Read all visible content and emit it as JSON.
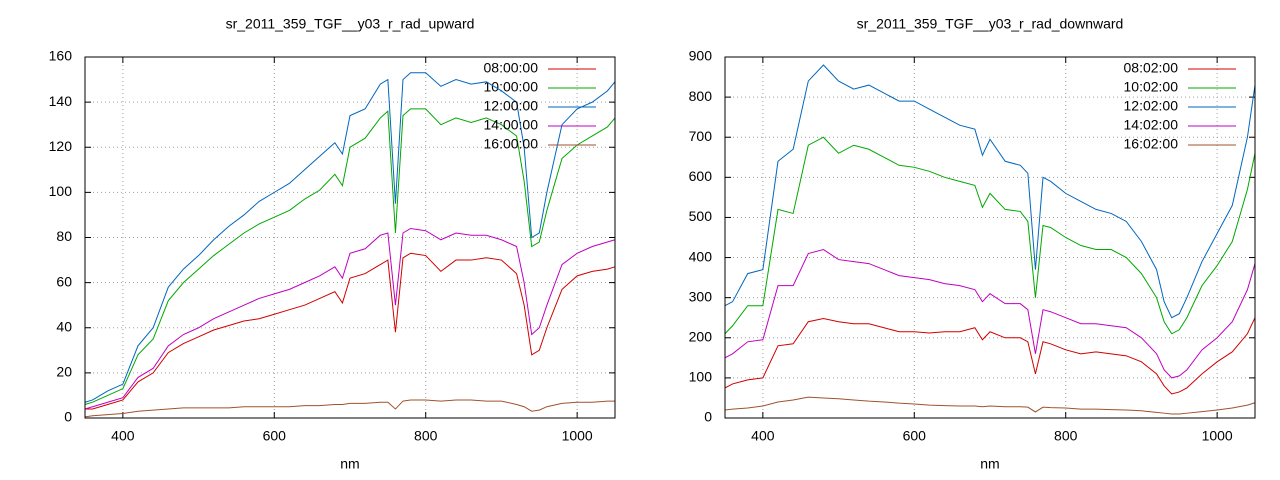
{
  "chart_data": [
    {
      "type": "line",
      "title": "sr_2011_359_TGF__y03_r_rad_upward",
      "x_label": "nm",
      "x": [
        350,
        360,
        380,
        400,
        420,
        440,
        460,
        480,
        500,
        520,
        540,
        560,
        580,
        600,
        620,
        640,
        660,
        680,
        690,
        700,
        720,
        740,
        750,
        760,
        770,
        780,
        800,
        820,
        840,
        860,
        880,
        900,
        920,
        930,
        940,
        950,
        960,
        980,
        1000,
        1020,
        1040,
        1050
      ],
      "xlim": [
        350,
        1050
      ],
      "xticks": [
        400,
        600,
        800,
        1000
      ],
      "ylim": [
        0,
        160
      ],
      "yticks": [
        0,
        20,
        40,
        60,
        80,
        100,
        120,
        140,
        160
      ],
      "grid": true,
      "legend": "upper right",
      "series": [
        {
          "name": "08:00:00",
          "color": "#d00000",
          "values": [
            4,
            4,
            6,
            8,
            16,
            20,
            29,
            33,
            36,
            39,
            41,
            43,
            44,
            46,
            48,
            50,
            53,
            56,
            51,
            62,
            64,
            68,
            70,
            38,
            71,
            73,
            72,
            65,
            70,
            70,
            71,
            70,
            64,
            50,
            28,
            30,
            40,
            57,
            63,
            65,
            66,
            67
          ]
        },
        {
          "name": "10:00:00",
          "color": "#00a800",
          "values": [
            6,
            7,
            10,
            13,
            28,
            35,
            52,
            60,
            66,
            72,
            77,
            82,
            86,
            89,
            92,
            97,
            101,
            108,
            103,
            120,
            124,
            133,
            136,
            82,
            134,
            137,
            137,
            130,
            133,
            131,
            133,
            130,
            125,
            105,
            76,
            78,
            92,
            115,
            121,
            125,
            129,
            133
          ]
        },
        {
          "name": "12:00:00",
          "color": "#0066c0",
          "values": [
            7,
            8,
            12,
            15,
            32,
            40,
            58,
            66,
            72,
            79,
            85,
            90,
            96,
            100,
            104,
            110,
            116,
            122,
            117,
            134,
            137,
            148,
            150,
            95,
            150,
            153,
            153,
            147,
            150,
            148,
            149,
            145,
            140,
            120,
            80,
            82,
            100,
            130,
            137,
            140,
            145,
            149
          ]
        },
        {
          "name": "14:00:00",
          "color": "#c000c0",
          "values": [
            4,
            5,
            7,
            9,
            18,
            22,
            32,
            37,
            40,
            44,
            47,
            50,
            53,
            55,
            57,
            60,
            63,
            67,
            62,
            73,
            75,
            81,
            82,
            50,
            82,
            84,
            83,
            79,
            82,
            81,
            81,
            79,
            76,
            60,
            37,
            40,
            50,
            68,
            73,
            76,
            78,
            79
          ]
        },
        {
          "name": "16:00:00",
          "color": "#a0522d",
          "values": [
            0.5,
            1,
            1.5,
            2,
            3,
            3.5,
            4,
            4.5,
            4.5,
            4.5,
            4.5,
            5,
            5,
            5,
            5,
            5.5,
            5.5,
            6,
            6,
            6.5,
            6.5,
            7,
            7,
            4,
            7.5,
            8,
            8,
            7.5,
            8,
            8,
            7.5,
            7.5,
            6,
            5,
            3,
            3.5,
            5,
            6.5,
            7,
            7,
            7.5,
            7.5
          ]
        }
      ]
    },
    {
      "type": "line",
      "title": "sr_2011_359_TGF__y03_r_rad_downward",
      "x_label": "nm",
      "x": [
        350,
        360,
        380,
        400,
        420,
        440,
        460,
        480,
        500,
        520,
        540,
        560,
        580,
        600,
        620,
        640,
        660,
        680,
        690,
        700,
        720,
        740,
        750,
        760,
        770,
        780,
        800,
        820,
        840,
        860,
        880,
        900,
        920,
        930,
        940,
        950,
        960,
        980,
        1000,
        1020,
        1040,
        1050
      ],
      "xlim": [
        350,
        1050
      ],
      "xticks": [
        400,
        600,
        800,
        1000
      ],
      "ylim": [
        0,
        900
      ],
      "yticks": [
        0,
        100,
        200,
        300,
        400,
        500,
        600,
        700,
        800,
        900
      ],
      "grid": true,
      "legend": "upper right",
      "series": [
        {
          "name": "08:02:00",
          "color": "#d00000",
          "values": [
            75,
            85,
            95,
            100,
            180,
            185,
            240,
            248,
            240,
            235,
            235,
            225,
            215,
            215,
            212,
            215,
            215,
            225,
            195,
            215,
            200,
            200,
            190,
            110,
            190,
            185,
            170,
            160,
            165,
            160,
            155,
            140,
            110,
            80,
            60,
            65,
            75,
            110,
            140,
            165,
            210,
            250
          ]
        },
        {
          "name": "10:02:00",
          "color": "#00a800",
          "values": [
            210,
            230,
            280,
            280,
            520,
            510,
            680,
            700,
            660,
            680,
            670,
            650,
            630,
            625,
            615,
            600,
            590,
            580,
            525,
            560,
            520,
            515,
            490,
            300,
            480,
            475,
            450,
            430,
            420,
            420,
            400,
            360,
            300,
            240,
            210,
            220,
            250,
            330,
            380,
            440,
            570,
            660
          ]
        },
        {
          "name": "12:02:00",
          "color": "#0066c0",
          "values": [
            280,
            290,
            360,
            370,
            640,
            670,
            840,
            880,
            840,
            820,
            830,
            810,
            790,
            790,
            770,
            750,
            730,
            720,
            655,
            695,
            640,
            630,
            610,
            370,
            600,
            590,
            560,
            540,
            520,
            510,
            490,
            440,
            370,
            290,
            250,
            260,
            300,
            390,
            460,
            530,
            700,
            830
          ]
        },
        {
          "name": "14:02:00",
          "color": "#c000c0",
          "values": [
            150,
            160,
            190,
            195,
            330,
            330,
            410,
            420,
            395,
            390,
            385,
            370,
            355,
            350,
            345,
            335,
            330,
            320,
            290,
            310,
            285,
            285,
            270,
            160,
            270,
            265,
            250,
            235,
            235,
            230,
            225,
            200,
            160,
            120,
            100,
            105,
            120,
            170,
            200,
            240,
            320,
            385
          ]
        },
        {
          "name": "16:02:00",
          "color": "#a0522d",
          "values": [
            20,
            22,
            25,
            30,
            40,
            45,
            52,
            50,
            48,
            45,
            42,
            40,
            37,
            35,
            32,
            31,
            30,
            30,
            28,
            30,
            28,
            28,
            27,
            15,
            27,
            26,
            25,
            22,
            22,
            21,
            20,
            18,
            14,
            12,
            10,
            10,
            12,
            16,
            20,
            25,
            32,
            38
          ]
        }
      ]
    }
  ]
}
